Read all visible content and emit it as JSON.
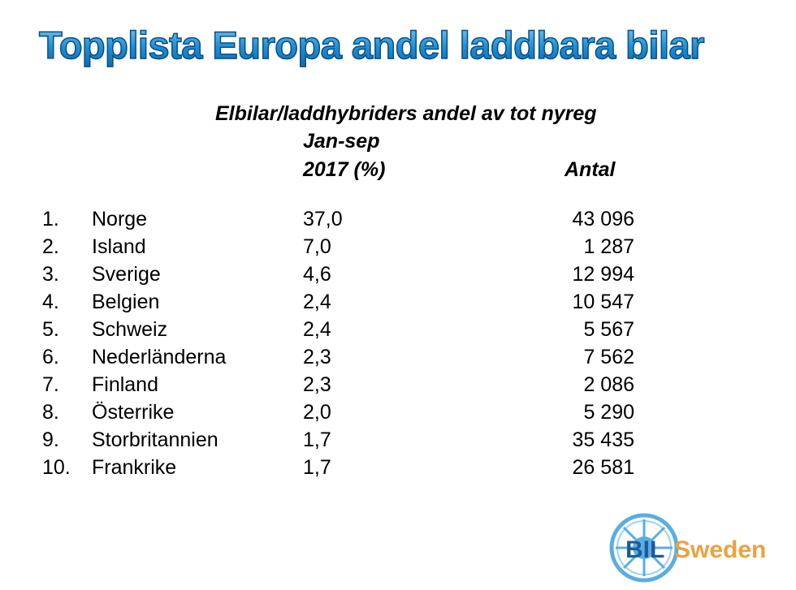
{
  "title": "Topplista Europa andel laddbara bilar",
  "header": {
    "line1": "Elbilar/laddhybriders andel av tot nyreg",
    "line2": "Jan-sep",
    "pct_col": "2017 (%)",
    "antal_col": "Antal"
  },
  "rows": [
    {
      "rank": "1.",
      "country": "Norge",
      "pct": "37,0",
      "antal": "43 096"
    },
    {
      "rank": "2.",
      "country": "Island",
      "pct": "7,0",
      "antal": "1 287"
    },
    {
      "rank": "3.",
      "country": "Sverige",
      "pct": "4,6",
      "antal": "12 994"
    },
    {
      "rank": "4.",
      "country": "Belgien",
      "pct": "2,4",
      "antal": "10 547"
    },
    {
      "rank": "5.",
      "country": "Schweiz",
      "pct": "2,4",
      "antal": "5 567"
    },
    {
      "rank": "6.",
      "country": "Nederländerna",
      "pct": "2,3",
      "antal": "7 562"
    },
    {
      "rank": "7.",
      "country": "Finland",
      "pct": "2,3",
      "antal": "2 086"
    },
    {
      "rank": "8.",
      "country": "Österrike",
      "pct": "2,0",
      "antal": "5 290"
    },
    {
      "rank": "9.",
      "country": "Storbritannien",
      "pct": "1,7",
      "antal": "35 435"
    },
    {
      "rank": "10.",
      "country": "Frankrike",
      "pct": "1,7",
      "antal": "26 581"
    }
  ],
  "logo": {
    "text_bil": "BIL",
    "text_sweden": "Sweden",
    "colors": {
      "bil": "#1f5a9a",
      "sweden": "#f0a040",
      "wheel": "#5aaee0"
    }
  }
}
